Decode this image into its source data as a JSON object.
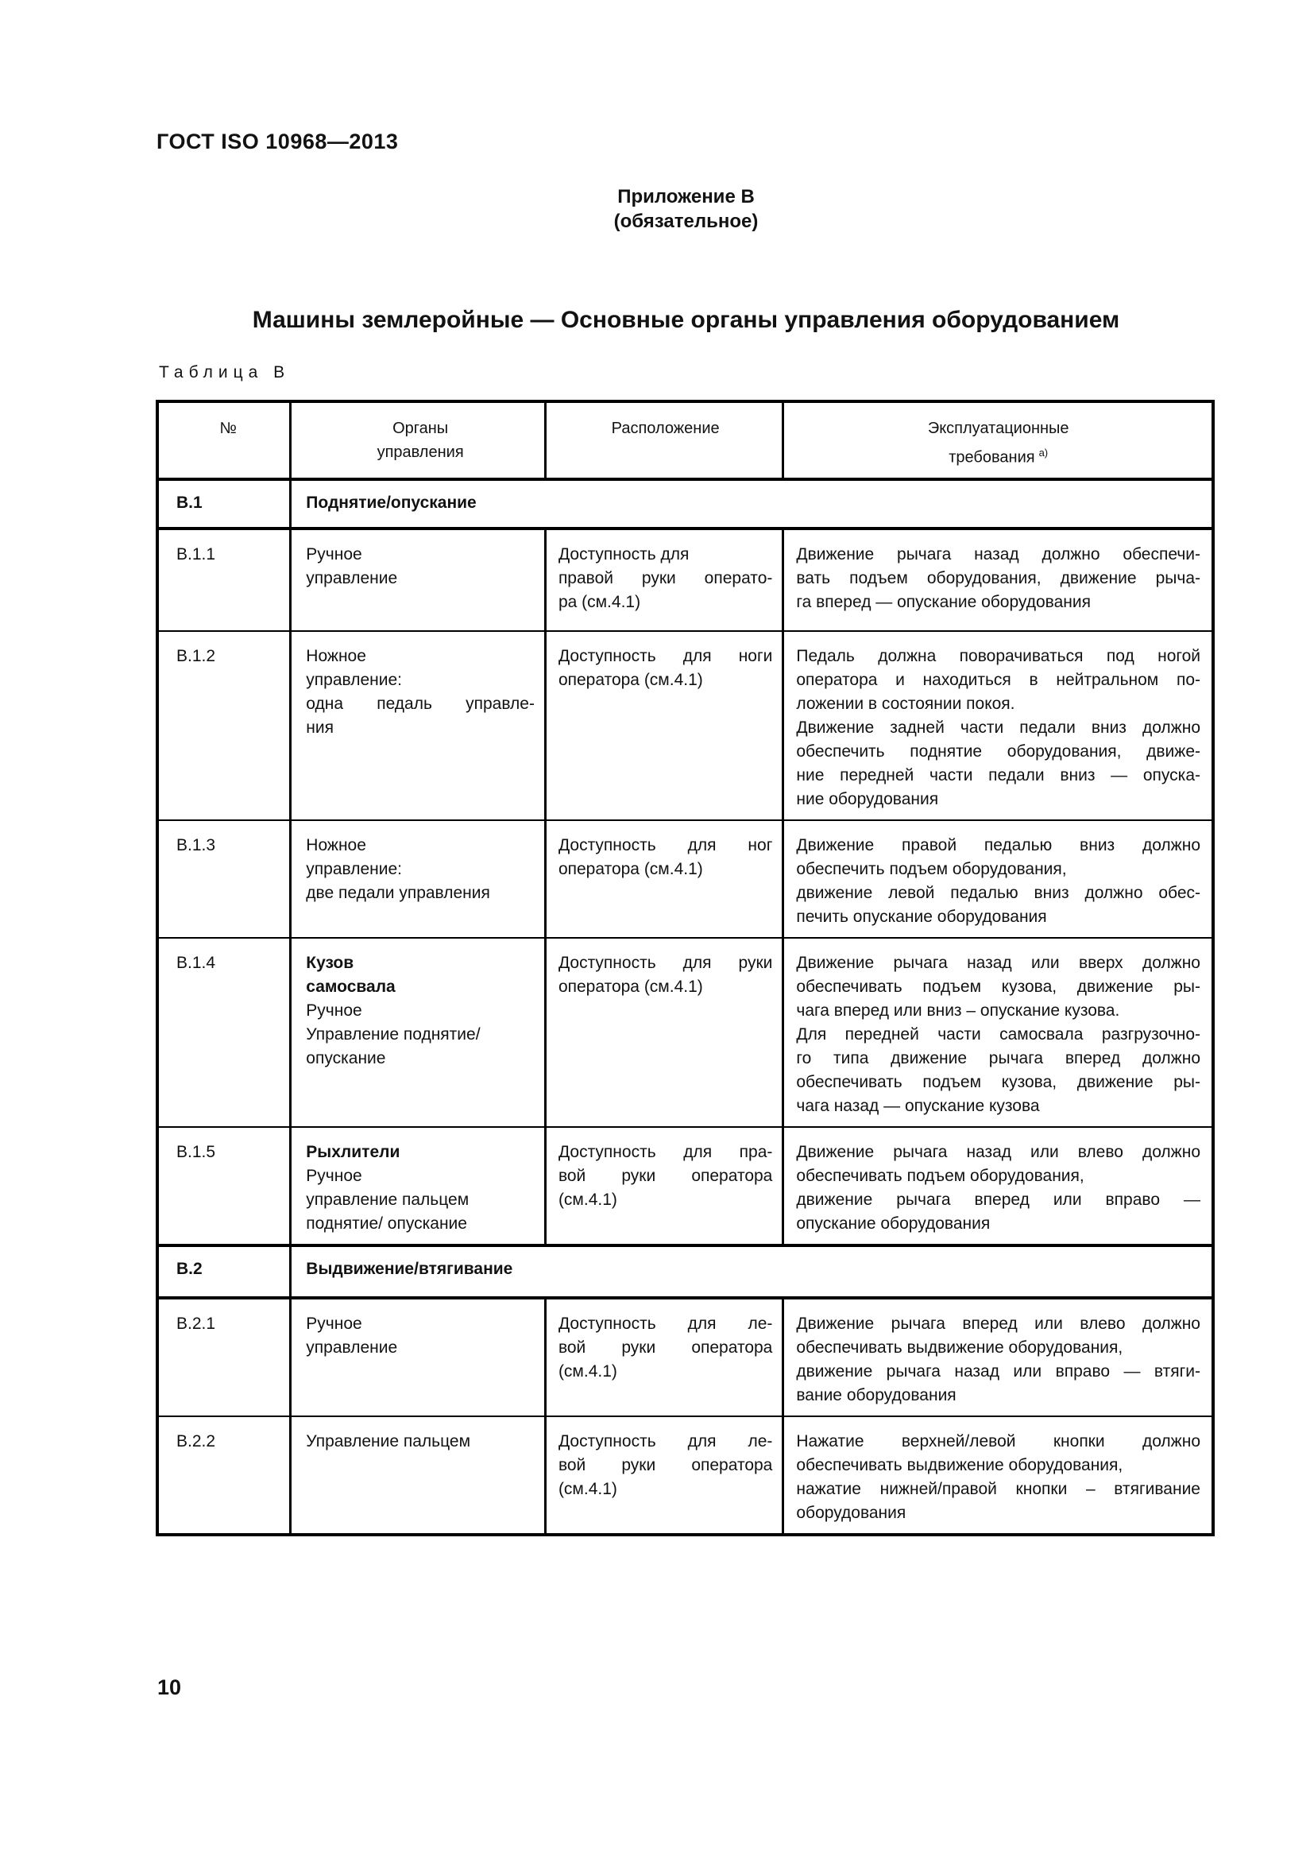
{
  "page": {
    "standard_code": "ГОСТ ISO 10968—2013",
    "annex_label": "Приложение В",
    "annex_type": "(обязательное)",
    "title": "Машины землеройные — Основные органы управления оборудованием",
    "table_label": "Таблица В",
    "page_number": "10"
  },
  "table": {
    "headers": {
      "num": "№",
      "control": [
        "Органы",
        "управления"
      ],
      "location": "Расположение",
      "requirements": [
        "Эксплуатационные",
        "требования"
      ],
      "requirements_footnote_mark": "а)"
    },
    "rows": [
      {
        "type": "section",
        "num": "В.1",
        "title": "Поднятие/опускание"
      },
      {
        "type": "data",
        "num": "В.1.1",
        "control": [
          "Ручное",
          "управление"
        ],
        "location": [
          "Доступность для",
          "правой руки операто-",
          "ра (см.4.1)"
        ],
        "requirements": [
          "Движение рычага назад должно обеспечи-",
          "вать подъем оборудования, движение рыча-",
          "га вперед — опускание оборудования"
        ]
      },
      {
        "type": "data",
        "num": "В.1.2",
        "control": [
          "Ножное",
          "управление:",
          "одна педаль управле-",
          "ния"
        ],
        "location": [
          "Доступность для ноги",
          "оператора (см.4.1)"
        ],
        "requirements": [
          "Педаль должна поворачиваться под ногой",
          "оператора и находиться в нейтральном по-",
          "ложении в состоянии покоя.",
          "Движение задней части педали вниз должно",
          "обеспечить поднятие оборудования, движе-",
          "ние передней части педали вниз — опуска-",
          "ние оборудования"
        ]
      },
      {
        "type": "data",
        "num": "В.1.3",
        "control": [
          "Ножное",
          "управление:",
          "две педали управления"
        ],
        "location": [
          "Доступность для ног",
          "оператора (см.4.1)"
        ],
        "requirements": [
          "Движение правой педалью вниз должно",
          "обеспечить подъем оборудования,",
          "движение левой педалью вниз должно обес-",
          "печить опускание оборудования"
        ]
      },
      {
        "type": "data",
        "num": "В.1.4",
        "control_bold": [
          "Кузов",
          "самосвала"
        ],
        "control": [
          "Ручное",
          "Управление поднятие/",
          "опускание"
        ],
        "location": [
          "Доступность для руки",
          "оператора (см.4.1)"
        ],
        "requirements": [
          "Движение рычага назад или вверх должно",
          "обеспечивать подъем кузова, движение ры-",
          "чага вперед или вниз – опускание кузова.",
          "Для передней части самосвала разгрузочно-",
          "го типа движение рычага вперед должно",
          "обеспечивать подъем кузова, движение ры-",
          "чага назад — опускание кузова"
        ]
      },
      {
        "type": "data",
        "num": "В.1.5",
        "control_bold": [
          "Рыхлители"
        ],
        "control": [
          "Ручное",
          "управление пальцем",
          "поднятие/ опускание"
        ],
        "location": [
          "Доступность для пра-",
          "вой руки оператора",
          "(см.4.1)"
        ],
        "requirements": [
          "Движение рычага назад или влево должно",
          "обеспечивать подъем оборудования,",
          "движение рычага вперед или вправо —",
          "опускание оборудования"
        ]
      },
      {
        "type": "section",
        "num": "В.2",
        "title": "Выдвижение/втягивание"
      },
      {
        "type": "data",
        "num": "В.2.1",
        "control": [
          "Ручное",
          "управление"
        ],
        "location": [
          "Доступность для ле-",
          "вой руки оператора",
          "(см.4.1)"
        ],
        "requirements": [
          "Движение рычага вперед или влево должно",
          "обеспечивать выдвижение оборудования,",
          "движение рычага назад или вправо — втяги-",
          "вание оборудования"
        ]
      },
      {
        "type": "data",
        "num": "В.2.2",
        "control": [
          "Управление пальцем"
        ],
        "location": [
          "Доступность для ле-",
          "вой руки оператора",
          "(см.4.1)"
        ],
        "requirements": [
          "Нажатие верхней/левой кнопки должно",
          "обеспечивать выдвижение оборудования,",
          "нажатие нижней/правой кнопки – втягивание",
          "оборудования"
        ]
      }
    ]
  }
}
